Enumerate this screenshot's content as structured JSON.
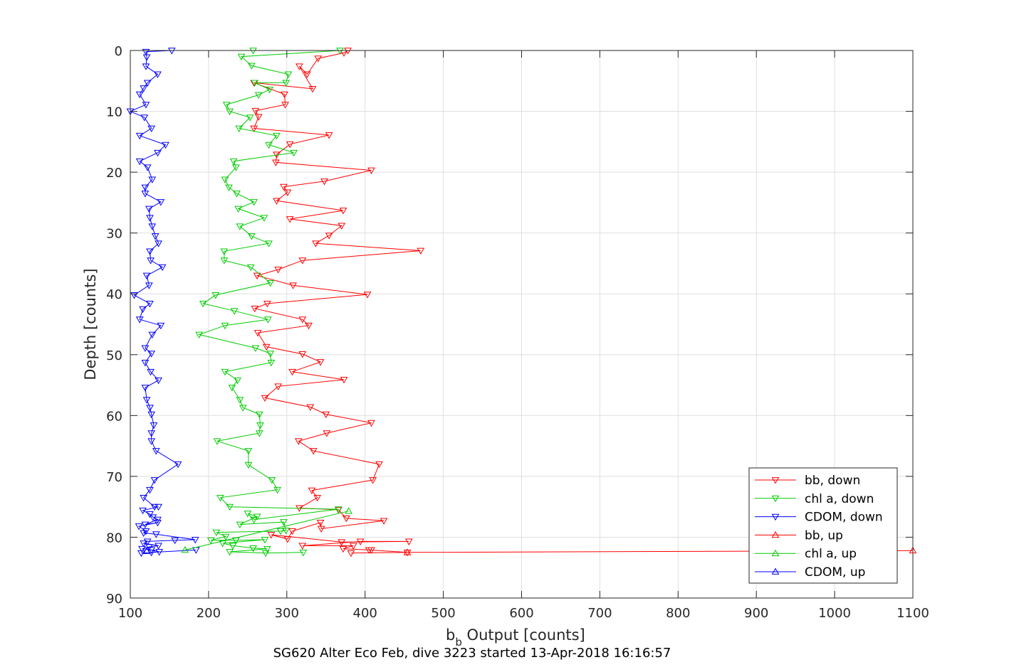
{
  "chart_data": {
    "type": "line",
    "title": "SG620 Alter Eco Feb, dive 3223 started 13-Apr-2018 16:16:57",
    "xlabel_main": "b",
    "xlabel_sub": "b",
    "xlabel_rest": " Output [counts]",
    "ylabel": "Depth [counts]",
    "xlim": [
      100,
      1100
    ],
    "ylim": [
      0,
      90
    ],
    "y_reversed": true,
    "xticks": [
      "100",
      "200",
      "300",
      "400",
      "500",
      "600",
      "700",
      "800",
      "900",
      "1000",
      "1100"
    ],
    "yticks": [
      "0",
      "10",
      "20",
      "30",
      "40",
      "50",
      "60",
      "70",
      "80",
      "90"
    ],
    "grid": true,
    "legend_position": "bottom-right",
    "series": [
      {
        "name": "bb, down",
        "color": "#ff0000",
        "marker": "down",
        "points": [
          [
            378,
            0
          ],
          [
            373,
            0.4
          ],
          [
            340,
            1.3
          ],
          [
            326,
            3.9
          ],
          [
            316,
            2.6
          ],
          [
            333,
            6.3
          ],
          [
            258,
            5.3
          ],
          [
            297,
            7.2
          ],
          [
            298,
            8.9
          ],
          [
            260,
            9.9
          ],
          [
            264,
            10.9
          ],
          [
            258,
            12.8
          ],
          [
            354,
            13.9
          ],
          [
            304,
            15.4
          ],
          [
            287,
            17.1
          ],
          [
            286,
            18.4
          ],
          [
            408,
            19.7
          ],
          [
            348,
            21.5
          ],
          [
            296,
            22.4
          ],
          [
            301,
            23.3
          ],
          [
            287,
            24.7
          ],
          [
            372,
            26.3
          ],
          [
            304,
            27.7
          ],
          [
            370,
            28.8
          ],
          [
            354,
            30.4
          ],
          [
            337,
            31.7
          ],
          [
            471,
            32.9
          ],
          [
            320,
            34.5
          ],
          [
            289,
            36
          ],
          [
            262,
            37
          ],
          [
            308,
            38.6
          ],
          [
            403,
            40.1
          ],
          [
            275,
            41.6
          ],
          [
            259,
            42.4
          ],
          [
            320,
            44.2
          ],
          [
            328,
            45.2
          ],
          [
            263,
            46.4
          ],
          [
            274,
            48.7
          ],
          [
            320,
            49.9
          ],
          [
            343,
            51.2
          ],
          [
            307,
            52.8
          ],
          [
            373,
            54.1
          ],
          [
            289,
            55.2
          ],
          [
            272,
            57.1
          ],
          [
            330,
            58.6
          ],
          [
            350,
            59.8
          ],
          [
            408,
            61.2
          ],
          [
            351,
            62.9
          ],
          [
            315,
            64.2
          ],
          [
            334,
            65.8
          ],
          [
            418,
            68
          ],
          [
            410,
            70.6
          ],
          [
            332,
            72.3
          ],
          [
            339,
            73.5
          ],
          [
            316,
            75.2
          ],
          [
            366,
            75.5
          ],
          [
            376,
            76.9
          ],
          [
            424,
            77.3
          ],
          [
            344,
            78.6
          ],
          [
            343,
            77.6
          ],
          [
            307,
            79
          ],
          [
            301,
            80.3
          ],
          [
            280,
            79.6
          ],
          [
            370,
            80.8
          ],
          [
            456,
            80.7
          ],
          [
            394,
            80.7
          ],
          [
            320,
            81.4
          ],
          [
            385,
            81.4
          ],
          [
            372,
            81.9
          ],
          [
            408,
            82.1
          ],
          [
            405,
            82.1
          ],
          [
            454,
            82.5
          ],
          [
            382,
            82.6
          ]
        ]
      },
      {
        "name": "chl a, down",
        "color": "#00cc00",
        "marker": "down",
        "points": [
          [
            257,
            0
          ],
          [
            368,
            0
          ],
          [
            242,
            1
          ],
          [
            255,
            2.5
          ],
          [
            302,
            3.9
          ],
          [
            299,
            5.3
          ],
          [
            259,
            5.3
          ],
          [
            278,
            6.4
          ],
          [
            264,
            7.3
          ],
          [
            223,
            8.9
          ],
          [
            227,
            10
          ],
          [
            253,
            11
          ],
          [
            239,
            12.8
          ],
          [
            287,
            14
          ],
          [
            277,
            15.5
          ],
          [
            309,
            16.8
          ],
          [
            232,
            18.2
          ],
          [
            235,
            19.2
          ],
          [
            221,
            21.2
          ],
          [
            226,
            22.5
          ],
          [
            236,
            23.5
          ],
          [
            258,
            24.9
          ],
          [
            238,
            26
          ],
          [
            271,
            27.5
          ],
          [
            240,
            28.9
          ],
          [
            255,
            30.5
          ],
          [
            277,
            31.7
          ],
          [
            220,
            33
          ],
          [
            220,
            34.5
          ],
          [
            254,
            35.6
          ],
          [
            279,
            38.2
          ],
          [
            209,
            40.2
          ],
          [
            193,
            41.6
          ],
          [
            233,
            42.8
          ],
          [
            276,
            44.2
          ],
          [
            221,
            45.2
          ],
          [
            188,
            46.7
          ],
          [
            260,
            48.9
          ],
          [
            279,
            49.8
          ],
          [
            280,
            51.3
          ],
          [
            221,
            52.8
          ],
          [
            237,
            54.2
          ],
          [
            230,
            55.4
          ],
          [
            240,
            57.4
          ],
          [
            244,
            58.7
          ],
          [
            265,
            59.8
          ],
          [
            266,
            61.6
          ],
          [
            265,
            62.9
          ],
          [
            211,
            64.2
          ],
          [
            251,
            65.8
          ],
          [
            251,
            68.1
          ],
          [
            281,
            70.6
          ],
          [
            288,
            72.2
          ],
          [
            215,
            73.5
          ],
          [
            227,
            75
          ],
          [
            366,
            75.4
          ],
          [
            258,
            77.1
          ],
          [
            250,
            76.1
          ],
          [
            262,
            76.6
          ],
          [
            240,
            77.9
          ],
          [
            296,
            77.5
          ],
          [
            299,
            78.9
          ],
          [
            292,
            79
          ],
          [
            210,
            79.2
          ],
          [
            222,
            79.9
          ],
          [
            203,
            80.5
          ],
          [
            235,
            80.5
          ],
          [
            272,
            80.4
          ],
          [
            218,
            81
          ],
          [
            231,
            81.4
          ],
          [
            257,
            81.8
          ],
          [
            275,
            81.9
          ],
          [
            227,
            82.4
          ],
          [
            273,
            82.6
          ],
          [
            321,
            82.5
          ]
        ]
      },
      {
        "name": "CDOM, down",
        "color": "#0000ff",
        "marker": "down",
        "points": [
          [
            153,
            0
          ],
          [
            120,
            0.2
          ],
          [
            121,
            1.1
          ],
          [
            120,
            2.6
          ],
          [
            135,
            3.9
          ],
          [
            122,
            5.3
          ],
          [
            117,
            6.2
          ],
          [
            112,
            7.2
          ],
          [
            120,
            8.9
          ],
          [
            100,
            10
          ],
          [
            118,
            11
          ],
          [
            127,
            12.8
          ],
          [
            112,
            14
          ],
          [
            145,
            15.5
          ],
          [
            135,
            16.8
          ],
          [
            112,
            18.2
          ],
          [
            122,
            19.2
          ],
          [
            128,
            21.2
          ],
          [
            119,
            22.5
          ],
          [
            119,
            23.5
          ],
          [
            139,
            24.9
          ],
          [
            124,
            26
          ],
          [
            125,
            27.5
          ],
          [
            128,
            28.9
          ],
          [
            132,
            30.5
          ],
          [
            136,
            31.7
          ],
          [
            125,
            33
          ],
          [
            126,
            34.5
          ],
          [
            141,
            35.6
          ],
          [
            121,
            37
          ],
          [
            124,
            38.6
          ],
          [
            105,
            40.2
          ],
          [
            125,
            41.6
          ],
          [
            116,
            42.5
          ],
          [
            112,
            44.2
          ],
          [
            139,
            45.2
          ],
          [
            128,
            46.7
          ],
          [
            119,
            48.9
          ],
          [
            127,
            49.8
          ],
          [
            119,
            51.3
          ],
          [
            126,
            52.8
          ],
          [
            136,
            54.2
          ],
          [
            119,
            55.4
          ],
          [
            121,
            57.4
          ],
          [
            125,
            58.7
          ],
          [
            127,
            59.8
          ],
          [
            130,
            61.6
          ],
          [
            127,
            62.9
          ],
          [
            127,
            64.2
          ],
          [
            133,
            65.8
          ],
          [
            161,
            68
          ],
          [
            131,
            70.6
          ],
          [
            125,
            72.2
          ],
          [
            117,
            73.5
          ],
          [
            131,
            75
          ],
          [
            136,
            75
          ],
          [
            116,
            75.6
          ],
          [
            125,
            76.2
          ],
          [
            129,
            76.7
          ],
          [
            135,
            77.1
          ],
          [
            119,
            77.9
          ],
          [
            135,
            77.6
          ],
          [
            111,
            78.2
          ],
          [
            120,
            79
          ],
          [
            117,
            79.3
          ],
          [
            133,
            79.5
          ],
          [
            183,
            80.4
          ],
          [
            157,
            80.5
          ],
          [
            122,
            80.7
          ],
          [
            117,
            81
          ],
          [
            136,
            81.4
          ],
          [
            124,
            81.6
          ],
          [
            115,
            81.9
          ],
          [
            127,
            82.1
          ],
          [
            137,
            82.4
          ],
          [
            114,
            82.6
          ],
          [
            127,
            82.5
          ],
          [
            184,
            82.1
          ]
        ]
      },
      {
        "name": "bb, up",
        "color": "#ff0000",
        "marker": "up",
        "points": [
          [
            1100,
            82.2
          ],
          [
            454,
            82.5
          ]
        ]
      },
      {
        "name": "chl a, up",
        "color": "#00cc00",
        "marker": "up",
        "points": [
          [
            379,
            75.7
          ],
          [
            170,
            82.1
          ]
        ]
      },
      {
        "name": "CDOM, up",
        "color": "#0000ff",
        "marker": "up",
        "points": [
          [
            121,
            82.3
          ]
        ]
      }
    ]
  }
}
